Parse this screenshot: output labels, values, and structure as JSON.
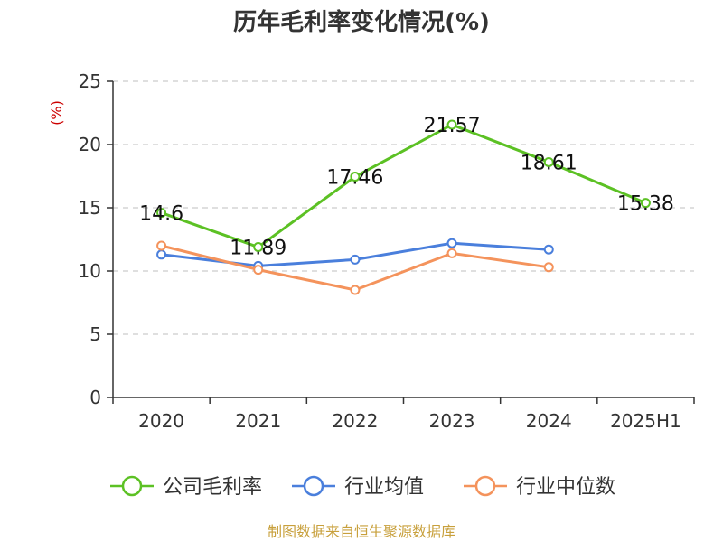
{
  "chart_data": {
    "type": "line",
    "title": "历年毛利率变化情况(%)",
    "unit_label": "(%)",
    "categories": [
      "2020",
      "2021",
      "2022",
      "2023",
      "2024",
      "2025H1"
    ],
    "ylim": [
      0,
      25
    ],
    "yticks": [
      0,
      5,
      10,
      15,
      20,
      25
    ],
    "grid": true,
    "legend_position": "bottom",
    "series": [
      {
        "name": "公司毛利率",
        "color": "#5cc124",
        "show_labels": true,
        "values": [
          14.6,
          11.89,
          17.46,
          21.57,
          18.61,
          15.38
        ],
        "labels": [
          "14.6",
          "11.89",
          "17.46",
          "21.57",
          "18.61",
          "15.38"
        ]
      },
      {
        "name": "行业均值",
        "color": "#4a7fdc",
        "show_labels": false,
        "values": [
          11.3,
          10.4,
          10.9,
          12.2,
          11.7,
          null
        ]
      },
      {
        "name": "行业中位数",
        "color": "#f4935c",
        "show_labels": false,
        "values": [
          12.0,
          10.1,
          8.5,
          11.4,
          10.3,
          null
        ]
      }
    ],
    "source": "制图数据来自恒生聚源数据库"
  }
}
